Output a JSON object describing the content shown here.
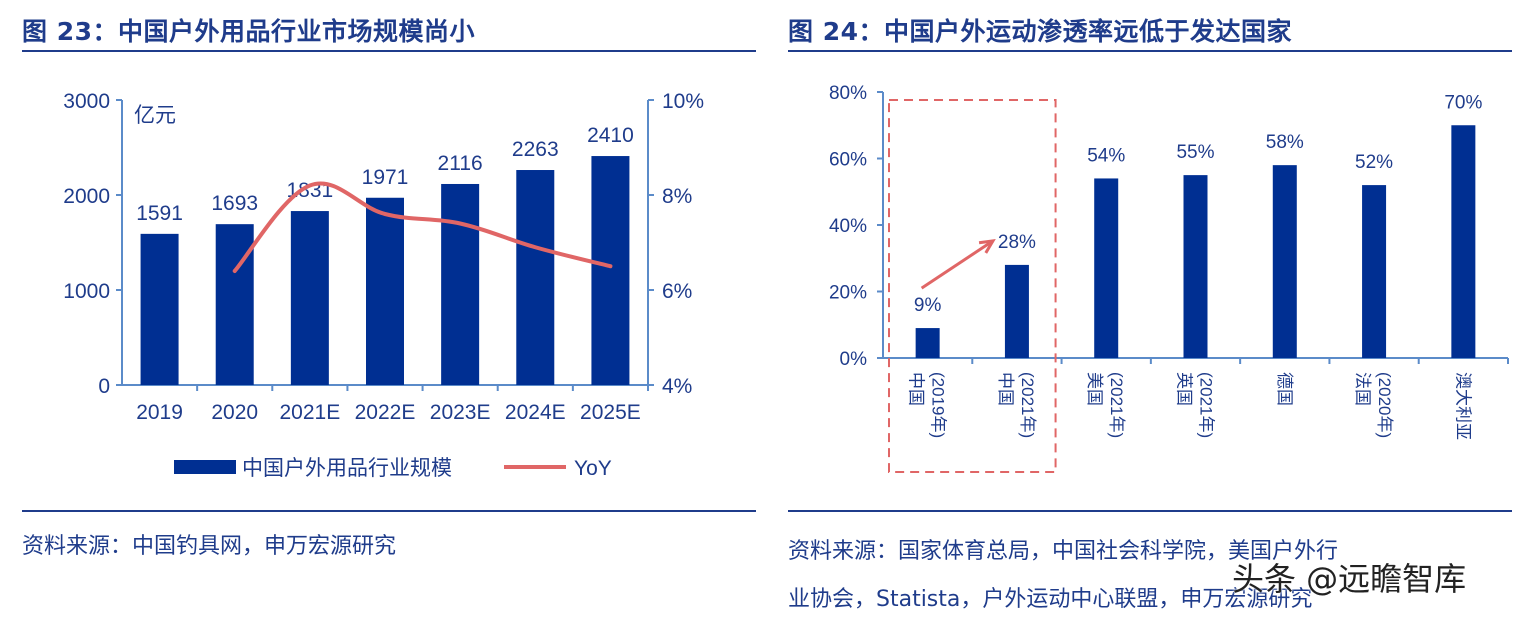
{
  "left": {
    "title": "图 23：中国户外用品行业市场规模尚小",
    "source": "资料来源：中国钓具网，申万宏源研究",
    "chart_data": {
      "type": "bar",
      "categories": [
        "2019",
        "2020",
        "2021E",
        "2022E",
        "2023E",
        "2024E",
        "2025E"
      ],
      "series": [
        {
          "name": "中国户外用品行业规模",
          "type": "bar",
          "axis": "left",
          "values": [
            1591,
            1693,
            1831,
            1971,
            2116,
            2263,
            2410
          ],
          "labels": [
            "1591",
            "1693",
            "1831",
            "1971",
            "2116",
            "2263",
            "2410"
          ]
        },
        {
          "name": "YoY",
          "type": "line",
          "axis": "right",
          "values": [
            null,
            6.4,
            8.2,
            7.6,
            7.4,
            6.9,
            6.5
          ]
        }
      ],
      "ylabel": "亿元",
      "ylim": [
        0,
        3000
      ],
      "yticks": [
        "0",
        "1000",
        "2000",
        "3000"
      ],
      "y2lim": [
        4,
        10
      ],
      "y2ticks": [
        "4%",
        "6%",
        "8%",
        "10%"
      ],
      "legend": "bottom",
      "grid": false,
      "colors": {
        "bar": "#002f92",
        "line": "#e06666",
        "axis": "#5b8bc9",
        "text": "#1f3c8b"
      }
    }
  },
  "right": {
    "title": "图 24：中国户外运动渗透率远低于发达国家",
    "source_line1": "资料来源：国家体育总局，中国社会科学院，美国户外行",
    "source_line2": "业协会，Statista，户外运动中心联盟，申万宏源研究",
    "chart_data": {
      "type": "bar",
      "categories": [
        "中国\n(2019年)",
        "中国\n(2021年)",
        "美国\n(2021年)",
        "英国\n(2021年)",
        "德国",
        "法国\n(2020年)",
        "澳大利亚"
      ],
      "values": [
        9,
        28,
        54,
        55,
        58,
        52,
        70
      ],
      "labels": [
        "9%",
        "28%",
        "54%",
        "55%",
        "58%",
        "52%",
        "70%"
      ],
      "ylim": [
        0,
        80
      ],
      "yticks": [
        "0%",
        "20%",
        "40%",
        "60%",
        "80%"
      ],
      "grid": false,
      "highlight": {
        "categories": [
          0,
          1
        ],
        "style": "dashed-box",
        "arrow": "from 9% to 28%"
      },
      "colors": {
        "bar": "#002f92",
        "highlight": "#e06666",
        "axis": "#5b8bc9",
        "text": "#1f3c8b"
      }
    }
  },
  "watermark": "头条 @远瞻智库"
}
